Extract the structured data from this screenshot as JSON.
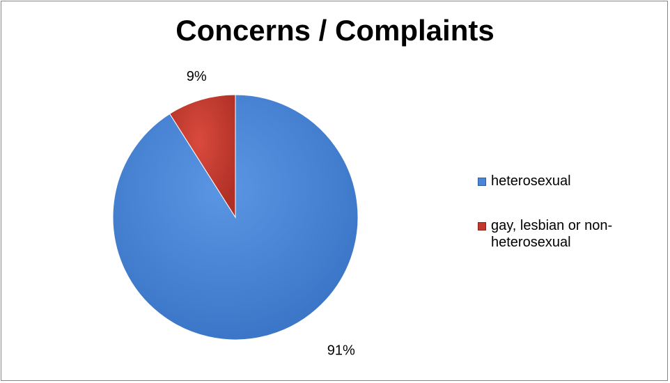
{
  "chart_data": {
    "type": "pie",
    "title": "Concerns / Complaints",
    "slices": [
      {
        "name": "heterosexual",
        "value": 91,
        "label": "91%",
        "color": "#4a86d8"
      },
      {
        "name": "gay, lesbian or non-heterosexual",
        "value": 9,
        "label": "9%",
        "color": "#c0392b"
      }
    ],
    "legend_position": "right"
  }
}
